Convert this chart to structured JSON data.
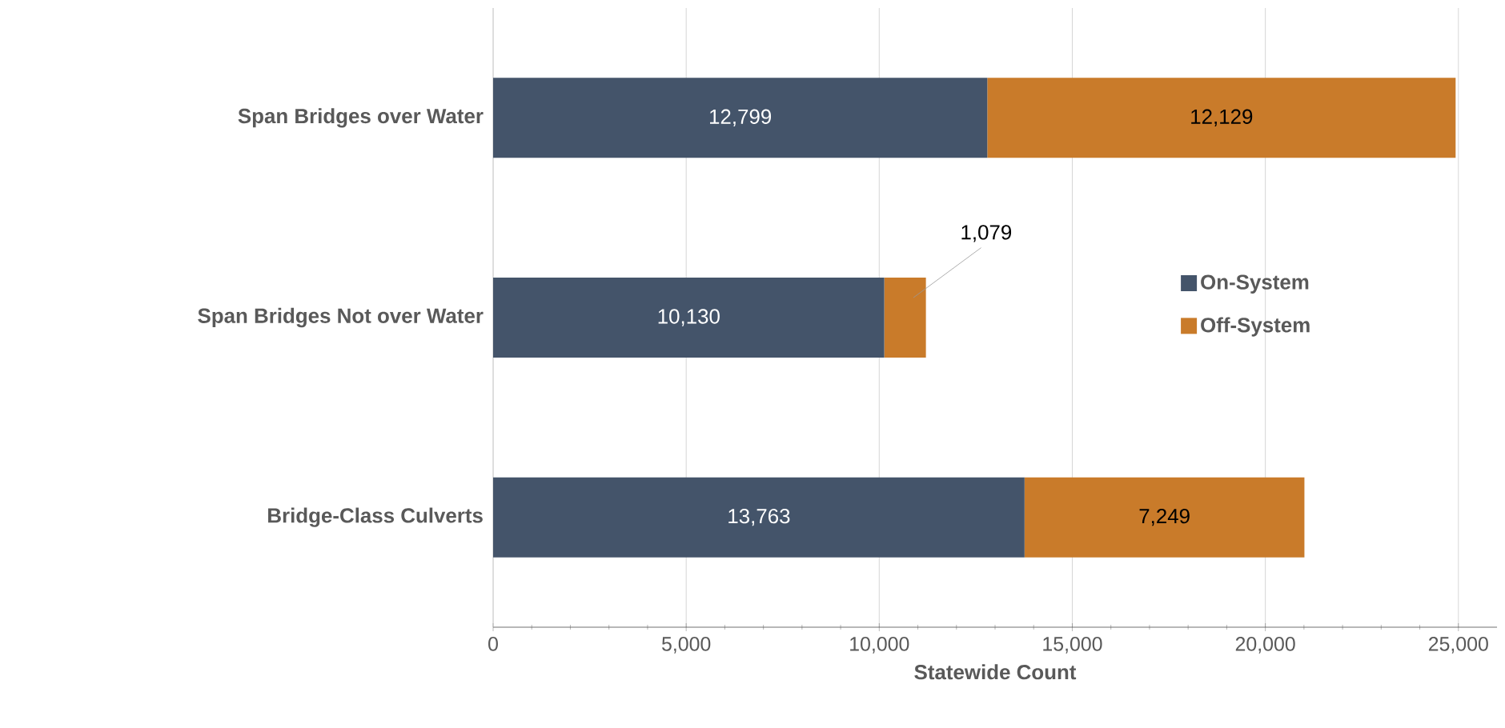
{
  "chart_data": {
    "type": "bar",
    "orientation": "horizontal",
    "stacked": true,
    "categories": [
      "Span Bridges over Water",
      "Span Bridges Not over Water",
      "Bridge-Class Culverts"
    ],
    "series": [
      {
        "name": "On-System",
        "color": "#44546a",
        "values": [
          12799,
          10130,
          13763
        ],
        "value_labels": [
          "12,799",
          "10,130",
          "13,763"
        ]
      },
      {
        "name": "Off-System",
        "color": "#c97b2a",
        "values": [
          12129,
          1079,
          7249
        ],
        "value_labels": [
          "12,129",
          "1,079",
          "7,249"
        ]
      }
    ],
    "xlabel": "Statewide Count",
    "xlim": [
      0,
      26000
    ],
    "xticks": [
      0,
      {
        "value": 5000,
        "label": "5,000"
      },
      {
        "value": 10000,
        "label": "10,000"
      },
      {
        "value": 15000,
        "label": "15,000"
      },
      {
        "value": 20000,
        "label": "20,000"
      },
      {
        "value": 25000,
        "label": "25,000"
      }
    ],
    "grid": "x",
    "legend": "right"
  }
}
